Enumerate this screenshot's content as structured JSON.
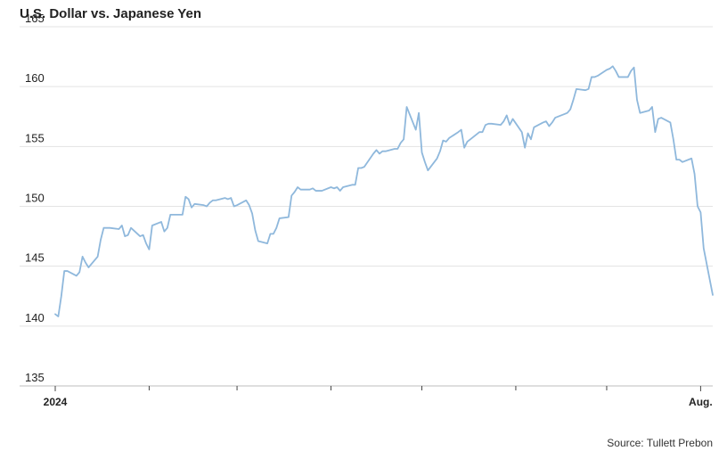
{
  "chart_data": {
    "type": "line",
    "title": "U.S. Dollar vs. Japanese Yen",
    "source": "Source: Tullett Prebon",
    "ylim": [
      135,
      165
    ],
    "y_ticks": [
      135,
      140,
      145,
      150,
      155,
      160,
      165
    ],
    "x_range": [
      "2024-01-01",
      "2024-08-05"
    ],
    "x_tick_labels": [
      {
        "date": "2024-01-01",
        "label": "2024"
      },
      {
        "date": "2024-08-01",
        "label": "Aug."
      }
    ],
    "x_minor_ticks": [
      "2024-02-01",
      "2024-03-01",
      "2024-04-01",
      "2024-05-01",
      "2024-06-01",
      "2024-07-01"
    ],
    "grid": "horizontal",
    "line_color": "#8fb8dc",
    "series": [
      {
        "name": "",
        "x": [
          "2024-01-01",
          "2024-01-02",
          "2024-01-03",
          "2024-01-04",
          "2024-01-05",
          "2024-01-08",
          "2024-01-09",
          "2024-01-10",
          "2024-01-11",
          "2024-01-12",
          "2024-01-15",
          "2024-01-16",
          "2024-01-17",
          "2024-01-18",
          "2024-01-19",
          "2024-01-22",
          "2024-01-23",
          "2024-01-24",
          "2024-01-25",
          "2024-01-26",
          "2024-01-29",
          "2024-01-30",
          "2024-01-31",
          "2024-02-01",
          "2024-02-02",
          "2024-02-05",
          "2024-02-06",
          "2024-02-07",
          "2024-02-08",
          "2024-02-09",
          "2024-02-12",
          "2024-02-13",
          "2024-02-14",
          "2024-02-15",
          "2024-02-16",
          "2024-02-19",
          "2024-02-20",
          "2024-02-21",
          "2024-02-22",
          "2024-02-23",
          "2024-02-26",
          "2024-02-27",
          "2024-02-28",
          "2024-02-29",
          "2024-03-01",
          "2024-03-04",
          "2024-03-05",
          "2024-03-06",
          "2024-03-07",
          "2024-03-08",
          "2024-03-11",
          "2024-03-12",
          "2024-03-13",
          "2024-03-14",
          "2024-03-15",
          "2024-03-18",
          "2024-03-19",
          "2024-03-20",
          "2024-03-21",
          "2024-03-22",
          "2024-03-25",
          "2024-03-26",
          "2024-03-27",
          "2024-03-28",
          "2024-03-29",
          "2024-04-01",
          "2024-04-02",
          "2024-04-03",
          "2024-04-04",
          "2024-04-05",
          "2024-04-08",
          "2024-04-09",
          "2024-04-10",
          "2024-04-11",
          "2024-04-12",
          "2024-04-15",
          "2024-04-16",
          "2024-04-17",
          "2024-04-18",
          "2024-04-19",
          "2024-04-22",
          "2024-04-23",
          "2024-04-24",
          "2024-04-25",
          "2024-04-26",
          "2024-04-29",
          "2024-04-30",
          "2024-05-01",
          "2024-05-02",
          "2024-05-03",
          "2024-05-06",
          "2024-05-07",
          "2024-05-08",
          "2024-05-09",
          "2024-05-10",
          "2024-05-13",
          "2024-05-14",
          "2024-05-15",
          "2024-05-16",
          "2024-05-17",
          "2024-05-20",
          "2024-05-21",
          "2024-05-22",
          "2024-05-23",
          "2024-05-24",
          "2024-05-27",
          "2024-05-28",
          "2024-05-29",
          "2024-05-30",
          "2024-05-31",
          "2024-06-03",
          "2024-06-04",
          "2024-06-05",
          "2024-06-06",
          "2024-06-07",
          "2024-06-10",
          "2024-06-11",
          "2024-06-12",
          "2024-06-13",
          "2024-06-14",
          "2024-06-17",
          "2024-06-18",
          "2024-06-19",
          "2024-06-20",
          "2024-06-21",
          "2024-06-24",
          "2024-06-25",
          "2024-06-26",
          "2024-06-27",
          "2024-06-28",
          "2024-07-01",
          "2024-07-02",
          "2024-07-03",
          "2024-07-04",
          "2024-07-05",
          "2024-07-08",
          "2024-07-09",
          "2024-07-10",
          "2024-07-11",
          "2024-07-12",
          "2024-07-15",
          "2024-07-16",
          "2024-07-17",
          "2024-07-18",
          "2024-07-19",
          "2024-07-22",
          "2024-07-23",
          "2024-07-24",
          "2024-07-25",
          "2024-07-26",
          "2024-07-29",
          "2024-07-30",
          "2024-07-31",
          "2024-08-01",
          "2024-08-02",
          "2024-08-05"
        ],
        "values": [
          141.0,
          140.8,
          142.5,
          144.6,
          144.6,
          144.2,
          144.5,
          145.8,
          145.3,
          144.9,
          145.8,
          147.2,
          148.2,
          148.2,
          148.2,
          148.1,
          148.4,
          147.5,
          147.6,
          148.2,
          147.5,
          147.6,
          146.9,
          146.4,
          148.4,
          148.7,
          147.9,
          148.2,
          149.3,
          149.3,
          149.3,
          150.8,
          150.6,
          149.9,
          150.2,
          150.1,
          150.0,
          150.3,
          150.5,
          150.5,
          150.7,
          150.6,
          150.7,
          150.0,
          150.1,
          150.5,
          150.1,
          149.4,
          148.0,
          147.1,
          146.9,
          147.7,
          147.7,
          148.2,
          149.0,
          149.1,
          150.9,
          151.2,
          151.6,
          151.4,
          151.4,
          151.5,
          151.3,
          151.3,
          151.3,
          151.6,
          151.5,
          151.6,
          151.3,
          151.6,
          151.8,
          151.8,
          153.2,
          153.2,
          153.3,
          154.4,
          154.7,
          154.4,
          154.6,
          154.6,
          154.8,
          154.8,
          155.3,
          155.6,
          158.3,
          156.4,
          157.8,
          154.5,
          153.7,
          153.0,
          154.0,
          154.6,
          155.5,
          155.4,
          155.7,
          156.2,
          156.4,
          154.9,
          155.4,
          155.6,
          156.2,
          156.2,
          156.8,
          156.9,
          156.9,
          156.8,
          157.1,
          157.6,
          156.8,
          157.3,
          156.2,
          154.9,
          156.1,
          155.6,
          156.6,
          157.0,
          157.1,
          156.7,
          157.0,
          157.4,
          157.7,
          157.8,
          158.1,
          158.9,
          159.8,
          159.7,
          159.8,
          160.8,
          160.8,
          160.9,
          161.4,
          161.5,
          161.7,
          161.3,
          160.8,
          160.8,
          161.3,
          161.6,
          158.9,
          157.8,
          158.0,
          158.3,
          156.2,
          157.3,
          157.4,
          157.0,
          155.6,
          153.9,
          153.9,
          153.7,
          154.0,
          152.7,
          150.0,
          149.5,
          146.5,
          142.6
        ]
      }
    ]
  }
}
